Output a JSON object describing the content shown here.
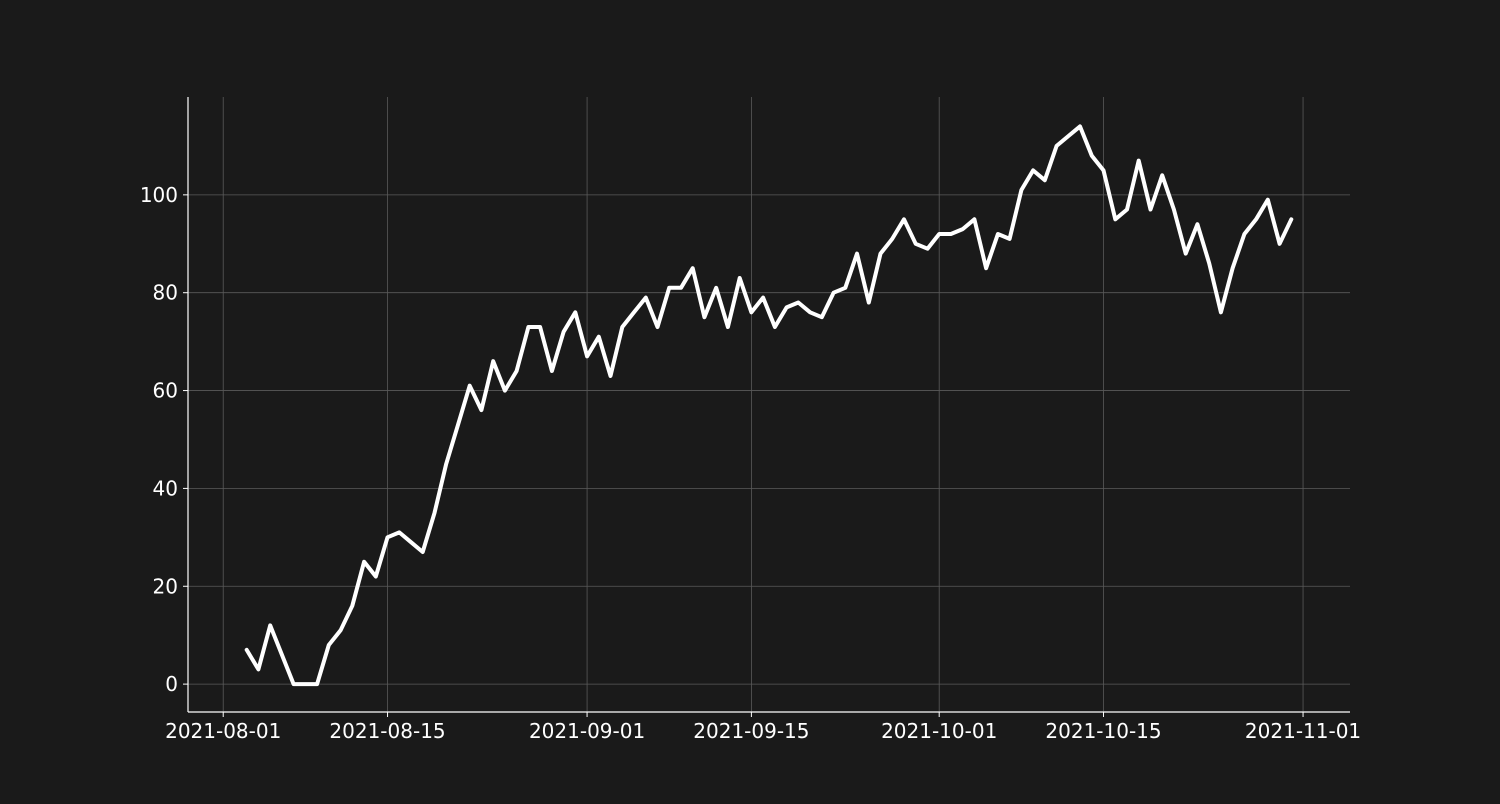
{
  "colors": {
    "background": "#1a1a1a",
    "line": "#ffffff",
    "axis": "#ffffff",
    "grid": "#5a5a5a",
    "text": "#ffffff"
  },
  "chart_data": {
    "type": "line",
    "title": "",
    "xlabel": "",
    "ylabel": "",
    "grid": true,
    "legend": "none",
    "xlim": [
      "2021-07-29",
      "2021-11-05"
    ],
    "ylim": [
      -5.7,
      120
    ],
    "x_ticks": [
      "2021-08-01",
      "2021-08-15",
      "2021-09-01",
      "2021-09-15",
      "2021-10-01",
      "2021-10-15",
      "2021-11-01"
    ],
    "y_ticks": [
      0,
      20,
      40,
      60,
      80,
      100
    ],
    "series": [
      {
        "start_date": "2021-08-03",
        "values": [
          7,
          3,
          12,
          6,
          0,
          0,
          0,
          8,
          11,
          16,
          25,
          22,
          30,
          31,
          29,
          27,
          35,
          45,
          53,
          61,
          56,
          66,
          60,
          64,
          73,
          73,
          64,
          72,
          76,
          67,
          71,
          63,
          73,
          76,
          79,
          73,
          81,
          81,
          85,
          75,
          81,
          73,
          83,
          76,
          79,
          73,
          77,
          78,
          76,
          75,
          80,
          81,
          88,
          78,
          88,
          91,
          95,
          90,
          89,
          92,
          92,
          93,
          95,
          85,
          92,
          91,
          101,
          105,
          103,
          110,
          112,
          114,
          108,
          105,
          95,
          97,
          107,
          97,
          104,
          97,
          88,
          94,
          86,
          76,
          85,
          92,
          95,
          99,
          90,
          95
        ]
      }
    ]
  }
}
